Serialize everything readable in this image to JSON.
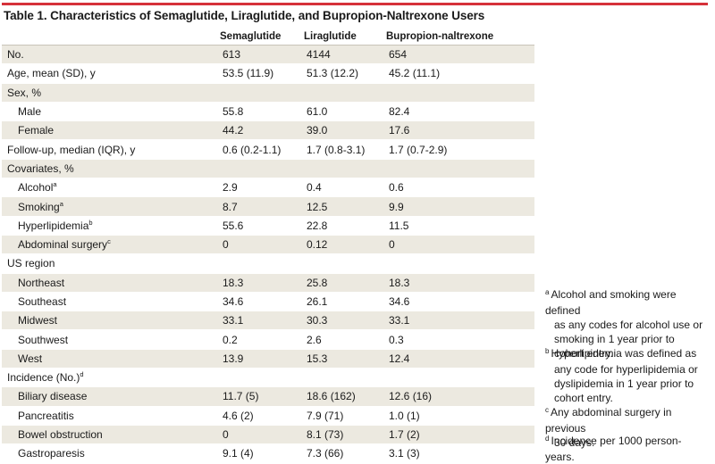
{
  "title": "Table 1. Characteristics of Semaglutide, Liraglutide, and Bupropion-Naltrexone Users",
  "columns": [
    "",
    "Semaglutide",
    "Liraglutide",
    "Bupropion-naltrexone"
  ],
  "rows": [
    {
      "label": "No.",
      "sup": "",
      "indent": 0,
      "values": [
        "613",
        "4144",
        "654"
      ]
    },
    {
      "label": "Age, mean (SD), y",
      "sup": "",
      "indent": 0,
      "values": [
        "53.5 (11.9)",
        "51.3 (12.2)",
        "45.2 (11.1)"
      ]
    },
    {
      "label": "Sex, %",
      "sup": "",
      "indent": 0,
      "values": [
        "",
        "",
        ""
      ]
    },
    {
      "label": "Male",
      "sup": "",
      "indent": 1,
      "values": [
        "55.8",
        "61.0",
        "82.4"
      ]
    },
    {
      "label": "Female",
      "sup": "",
      "indent": 1,
      "values": [
        "44.2",
        "39.0",
        "17.6"
      ]
    },
    {
      "label": "Follow-up, median (IQR), y",
      "sup": "",
      "indent": 0,
      "values": [
        "0.6 (0.2-1.1)",
        "1.7 (0.8-3.1)",
        "1.7 (0.7-2.9)"
      ]
    },
    {
      "label": "Covariates, %",
      "sup": "",
      "indent": 0,
      "values": [
        "",
        "",
        ""
      ]
    },
    {
      "label": "Alcohol",
      "sup": "a",
      "indent": 1,
      "values": [
        "2.9",
        "0.4",
        "0.6"
      ]
    },
    {
      "label": "Smoking",
      "sup": "a",
      "indent": 1,
      "values": [
        "8.7",
        "12.5",
        "9.9"
      ]
    },
    {
      "label": "Hyperlipidemia",
      "sup": "b",
      "indent": 1,
      "values": [
        "55.6",
        "22.8",
        "11.5"
      ]
    },
    {
      "label": "Abdominal surgery",
      "sup": "c",
      "indent": 1,
      "values": [
        "0",
        "0.12",
        "0"
      ]
    },
    {
      "label": "US region",
      "sup": "",
      "indent": 0,
      "values": [
        "",
        "",
        ""
      ]
    },
    {
      "label": "Northeast",
      "sup": "",
      "indent": 1,
      "values": [
        "18.3",
        "25.8",
        "18.3"
      ]
    },
    {
      "label": "Southeast",
      "sup": "",
      "indent": 1,
      "values": [
        "34.6",
        "26.1",
        "34.6"
      ]
    },
    {
      "label": "Midwest",
      "sup": "",
      "indent": 1,
      "values": [
        "33.1",
        "30.3",
        "33.1"
      ]
    },
    {
      "label": "Southwest",
      "sup": "",
      "indent": 1,
      "values": [
        "0.2",
        "2.6",
        "0.3"
      ]
    },
    {
      "label": "West",
      "sup": "",
      "indent": 1,
      "values": [
        "13.9",
        "15.3",
        "12.4"
      ]
    },
    {
      "label": "Incidence (No.)",
      "sup": "d",
      "indent": 0,
      "values": [
        "",
        "",
        ""
      ]
    },
    {
      "label": "Biliary disease",
      "sup": "",
      "indent": 1,
      "values": [
        "11.7 (5)",
        "18.6 (162)",
        "12.6 (16)"
      ]
    },
    {
      "label": "Pancreatitis",
      "sup": "",
      "indent": 1,
      "values": [
        "4.6 (2)",
        "7.9 (71)",
        "1.0 (1)"
      ]
    },
    {
      "label": "Bowel obstruction",
      "sup": "",
      "indent": 1,
      "values": [
        "0",
        "8.1 (73)",
        "1.7 (2)"
      ]
    },
    {
      "label": "Gastroparesis",
      "sup": "",
      "indent": 1,
      "values": [
        "9.1 (4)",
        "7.3 (66)",
        "3.1 (3)"
      ]
    }
  ],
  "footnotes": [
    {
      "mark": "a",
      "lines": [
        "Alcohol and smoking were defined",
        "as any codes for alcohol use or",
        "smoking in 1 year prior to",
        "cohort entry."
      ]
    },
    {
      "mark": "b",
      "lines": [
        "Hyperlipidemia was defined as",
        "any code for hyperlipidemia or",
        "dyslipidemia in 1 year prior to",
        "cohort entry."
      ]
    },
    {
      "mark": "c",
      "lines": [
        "Any abdominal surgery in previous",
        "30 days."
      ]
    },
    {
      "mark": "d",
      "lines": [
        "Incidence per 1000 person-years."
      ]
    }
  ],
  "colors": {
    "accent_rule": "#d6313a",
    "row_shade": "#ece9e0"
  }
}
